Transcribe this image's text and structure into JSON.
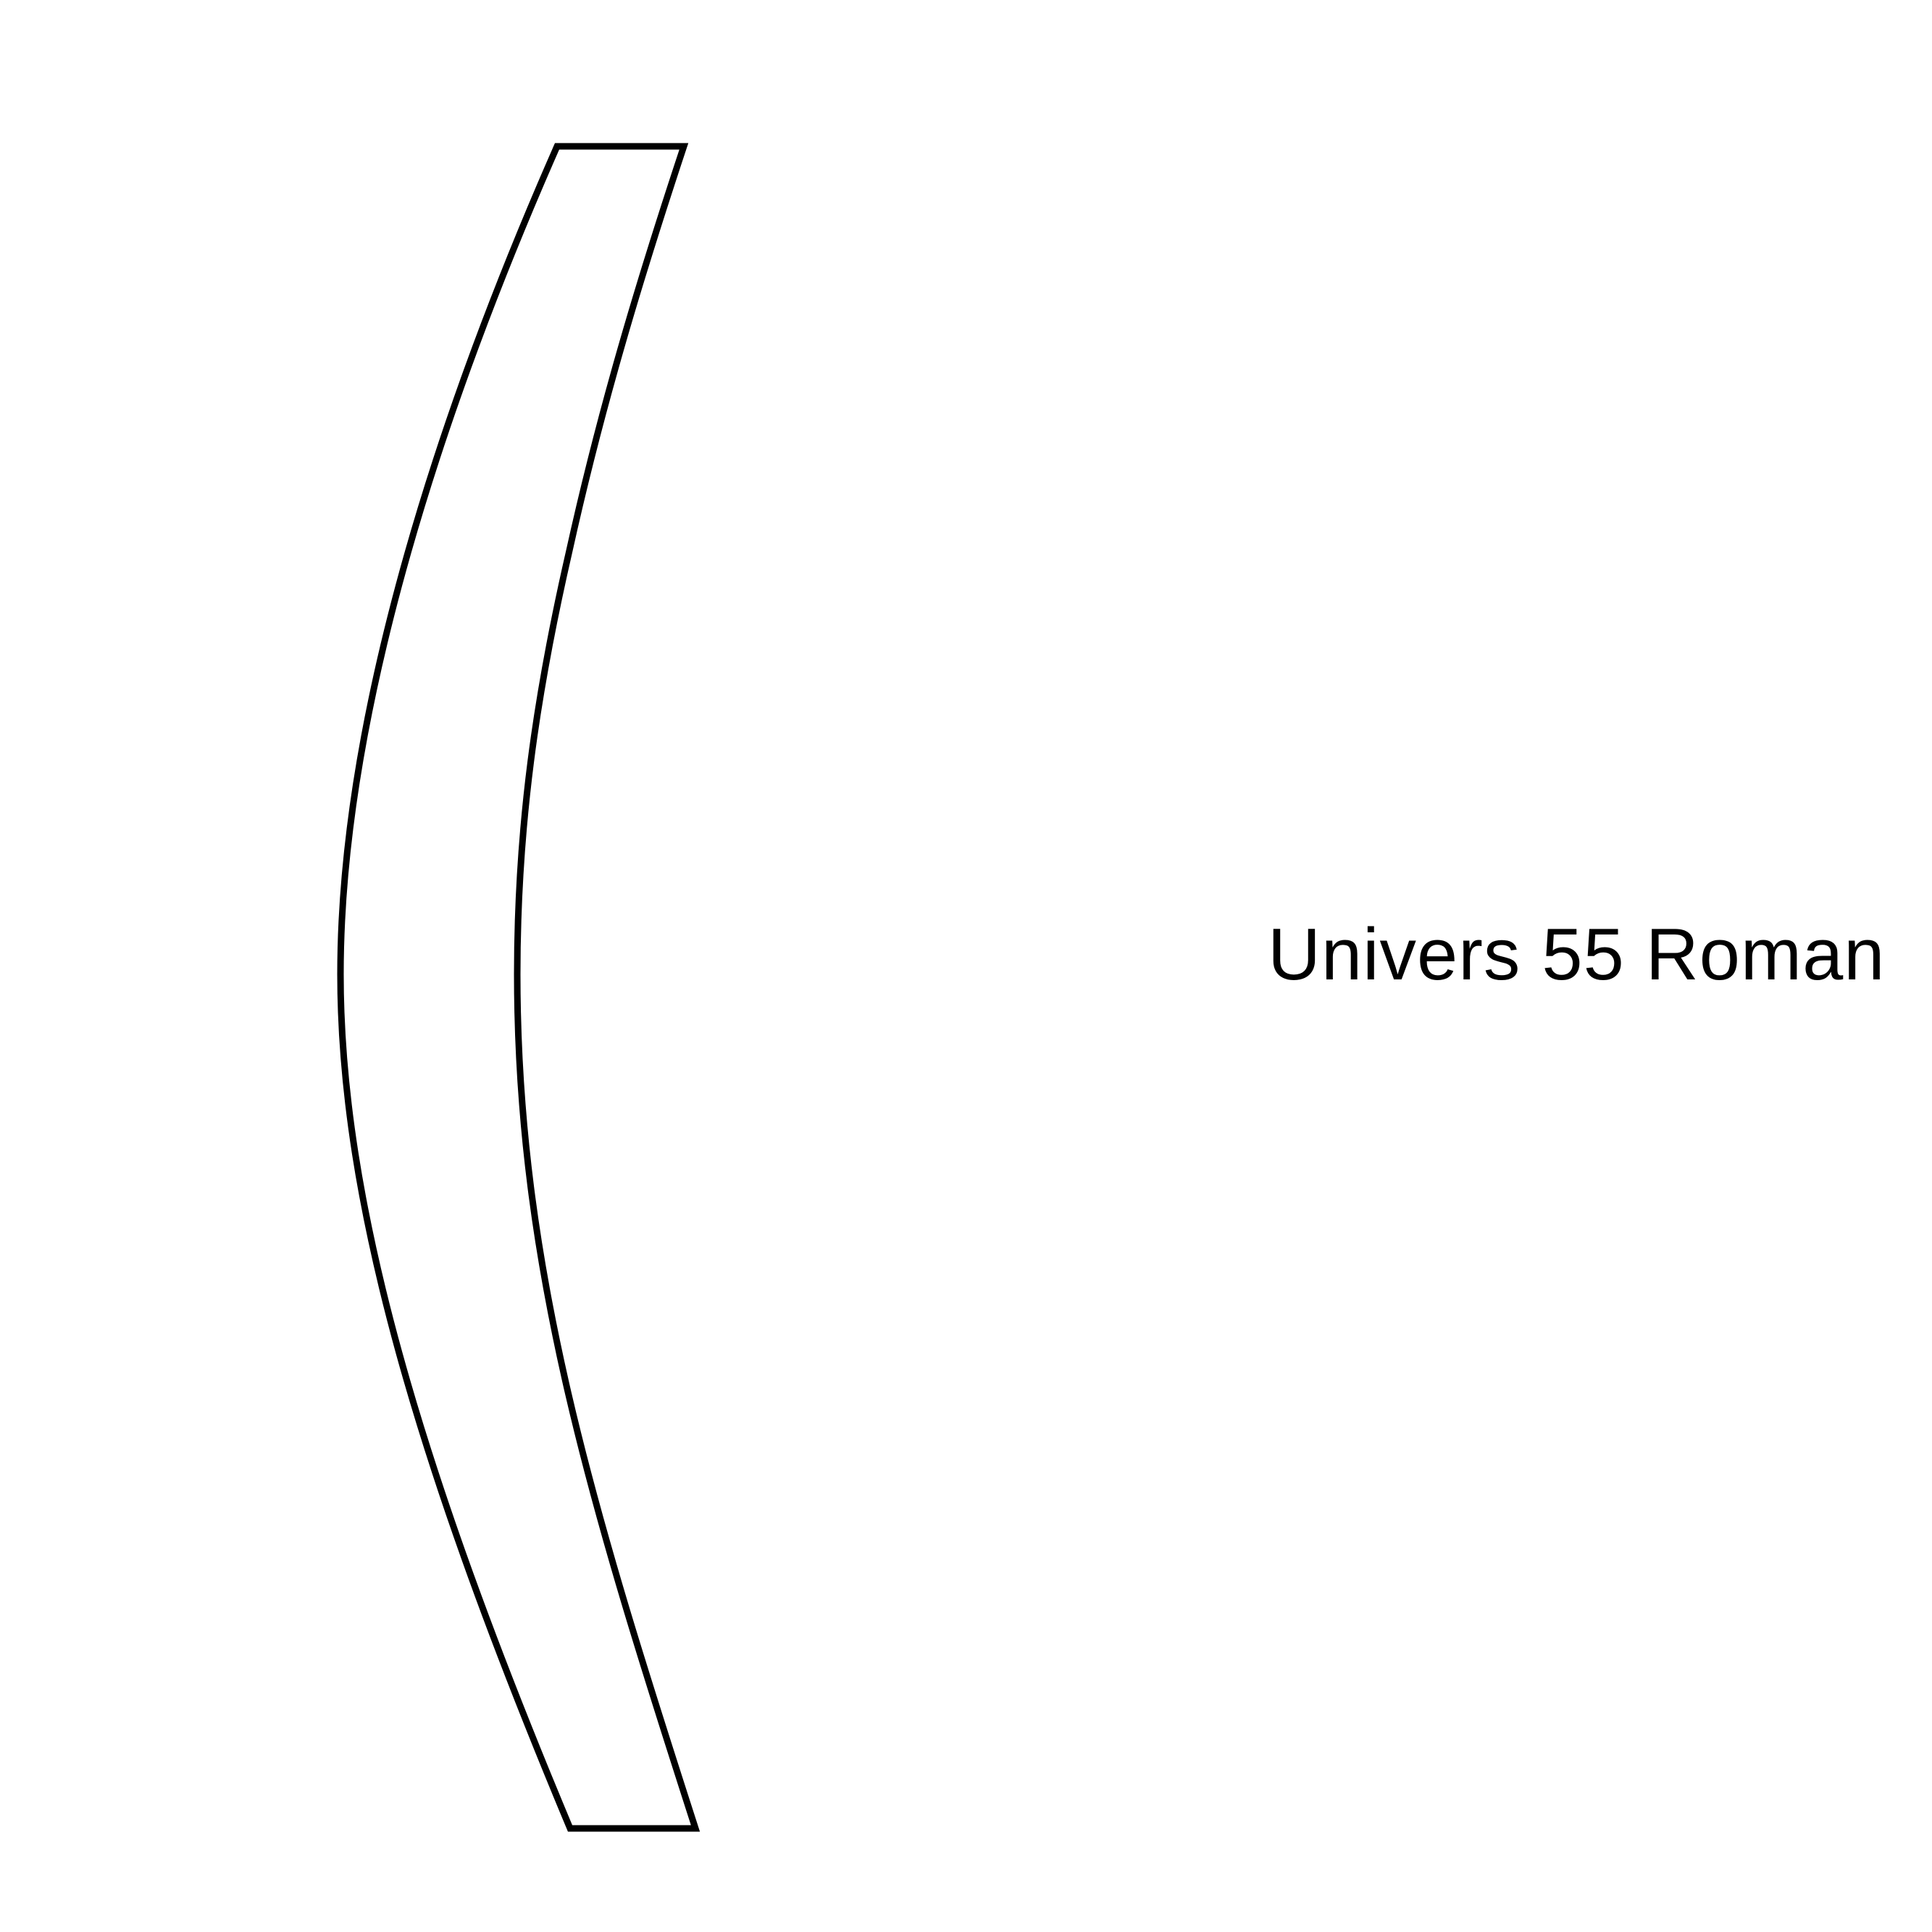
{
  "specimen": {
    "glyph": "(",
    "glyph_name": "parenleft",
    "font_label": "Univers 55 Roman",
    "style": "outline",
    "stroke_color": "#000000",
    "background_color": "#ffffff"
  }
}
